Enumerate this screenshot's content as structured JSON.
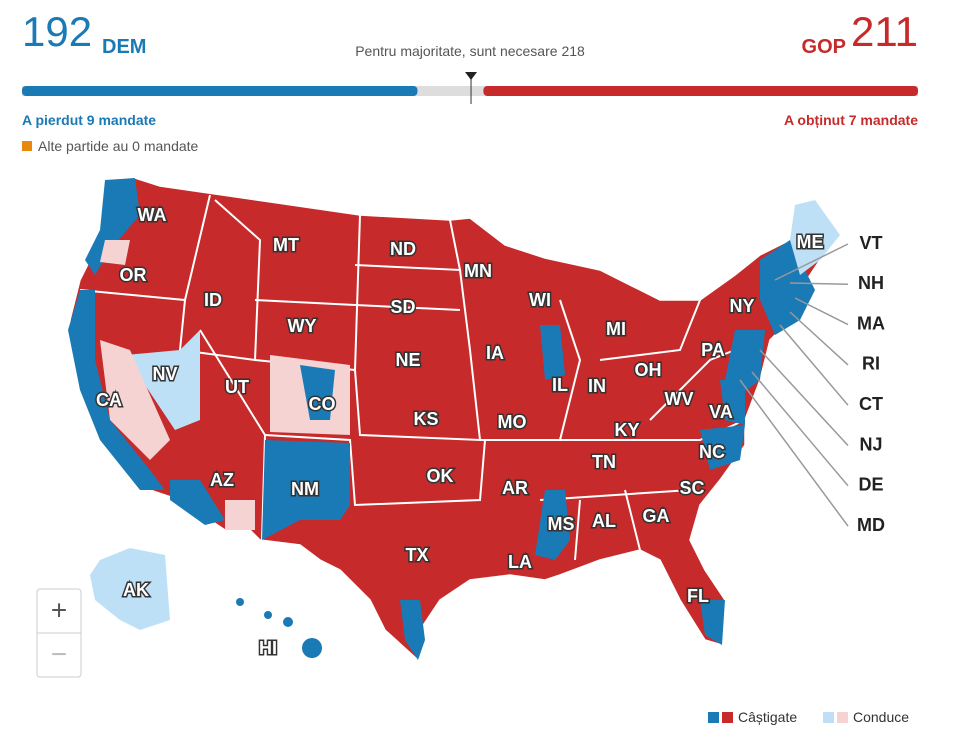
{
  "header": {
    "dem_count": "192",
    "dem_label": "DEM",
    "majority_text": "Pentru majoritate, sunt necesare",
    "majority": 218,
    "gop_label": "GOP",
    "gop_count": "211",
    "dem_change": "A pierdut 9 mandate",
    "gop_change": "A obținut 7 mandate",
    "others": "Alte partide au 0 mandate"
  },
  "map": {
    "states": [
      "WA",
      "OR",
      "MT",
      "ND",
      "MN",
      "ID",
      "SD",
      "WI",
      "NY",
      "MI",
      "WY",
      "NE",
      "IA",
      "PA",
      "NV",
      "UT",
      "IL",
      "IN",
      "OH",
      "CA",
      "CO",
      "KS",
      "MO",
      "WV",
      "VA",
      "KY",
      "NC",
      "TN",
      "AZ",
      "NM",
      "OK",
      "AR",
      "SC",
      "MS",
      "AL",
      "GA",
      "TX",
      "LA",
      "FL",
      "AK",
      "HI"
    ],
    "callouts": [
      "VT",
      "NH",
      "MA",
      "RI",
      "CT",
      "NJ",
      "DE",
      "MD"
    ],
    "inset_label": "ME"
  },
  "controls": {
    "zoom_in": "+",
    "zoom_out": "−"
  },
  "legend": {
    "won": "Câștigate",
    "leading": "Conduce"
  }
}
